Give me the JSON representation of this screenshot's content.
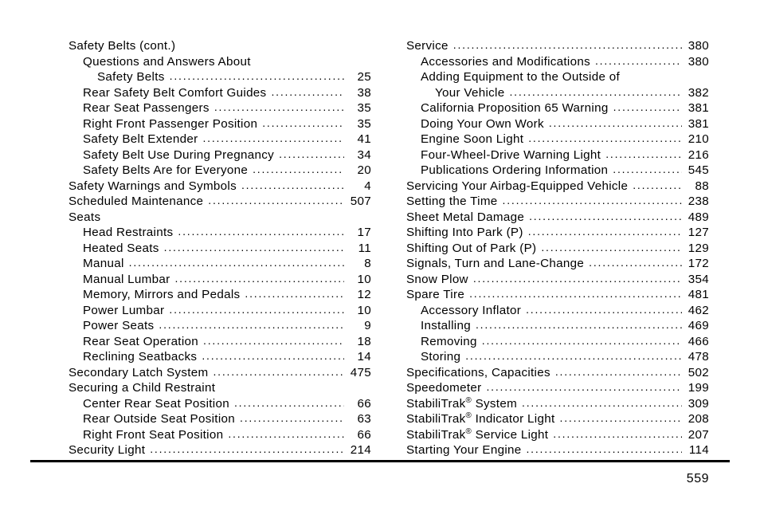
{
  "page_number": "559",
  "left_column": [
    {
      "label": "Safety Belts (cont.)",
      "page": "",
      "indent": 0,
      "nolink": true
    },
    {
      "label": "Questions and Answers About",
      "page": "",
      "indent": 1,
      "nolink": true
    },
    {
      "label": "Safety Belts",
      "page": "25",
      "indent": 2
    },
    {
      "label": "Rear Safety Belt Comfort Guides",
      "page": "38",
      "indent": 1
    },
    {
      "label": "Rear Seat Passengers",
      "page": "35",
      "indent": 1
    },
    {
      "label": "Right Front Passenger Position",
      "page": "35",
      "indent": 1
    },
    {
      "label": "Safety Belt Extender",
      "page": "41",
      "indent": 1
    },
    {
      "label": "Safety Belt Use During Pregnancy",
      "page": "34",
      "indent": 1
    },
    {
      "label": "Safety Belts Are for Everyone",
      "page": "20",
      "indent": 1
    },
    {
      "label": "Safety Warnings and Symbols",
      "page": "4",
      "indent": 0
    },
    {
      "label": "Scheduled Maintenance",
      "page": "507",
      "indent": 0
    },
    {
      "label": "Seats",
      "page": "",
      "indent": 0,
      "nolink": true
    },
    {
      "label": "Head Restraints",
      "page": "17",
      "indent": 1
    },
    {
      "label": "Heated Seats",
      "page": "11",
      "indent": 1
    },
    {
      "label": "Manual",
      "page": "8",
      "indent": 1
    },
    {
      "label": "Manual Lumbar",
      "page": "10",
      "indent": 1
    },
    {
      "label": "Memory, Mirrors and Pedals",
      "page": "12",
      "indent": 1
    },
    {
      "label": "Power Lumbar",
      "page": "10",
      "indent": 1
    },
    {
      "label": "Power Seats",
      "page": "9",
      "indent": 1
    },
    {
      "label": "Rear Seat Operation",
      "page": "18",
      "indent": 1
    },
    {
      "label": "Reclining Seatbacks",
      "page": "14",
      "indent": 1
    },
    {
      "label": "Secondary Latch System",
      "page": "475",
      "indent": 0
    },
    {
      "label": "Securing a Child Restraint",
      "page": "",
      "indent": 0,
      "nolink": true
    },
    {
      "label": "Center Rear Seat Position",
      "page": "66",
      "indent": 1
    },
    {
      "label": "Rear Outside Seat Position",
      "page": "63",
      "indent": 1
    },
    {
      "label": "Right Front Seat Position",
      "page": "66",
      "indent": 1
    },
    {
      "label": "Security Light",
      "page": "214",
      "indent": 0
    }
  ],
  "right_column": [
    {
      "label": "Service",
      "page": "380",
      "indent": 0
    },
    {
      "label": "Accessories and Modifications",
      "page": "380",
      "indent": 1
    },
    {
      "label": "Adding Equipment to the Outside of",
      "page": "",
      "indent": 1,
      "nolink": true
    },
    {
      "label": "Your Vehicle",
      "page": "382",
      "indent": 2
    },
    {
      "label": "California Proposition 65 Warning",
      "page": "381",
      "indent": 1
    },
    {
      "label": "Doing Your Own Work",
      "page": "381",
      "indent": 1
    },
    {
      "label": "Engine Soon Light",
      "page": "210",
      "indent": 1
    },
    {
      "label": "Four-Wheel-Drive Warning Light",
      "page": "216",
      "indent": 1
    },
    {
      "label": "Publications Ordering Information",
      "page": "545",
      "indent": 1
    },
    {
      "label": "Servicing Your Airbag-Equipped Vehicle",
      "page": "88",
      "indent": 0
    },
    {
      "label": "Setting the Time",
      "page": "238",
      "indent": 0
    },
    {
      "label": "Sheet Metal Damage",
      "page": "489",
      "indent": 0
    },
    {
      "label": "Shifting Into Park (P)",
      "page": "127",
      "indent": 0
    },
    {
      "label": "Shifting Out of Park (P)",
      "page": "129",
      "indent": 0
    },
    {
      "label": "Signals, Turn and Lane-Change",
      "page": "172",
      "indent": 0
    },
    {
      "label": "Snow Plow",
      "page": "354",
      "indent": 0
    },
    {
      "label": "Spare Tire",
      "page": "481",
      "indent": 0
    },
    {
      "label": "Accessory Inflator",
      "page": "462",
      "indent": 1
    },
    {
      "label": "Installing",
      "page": "469",
      "indent": 1
    },
    {
      "label": "Removing",
      "page": "466",
      "indent": 1
    },
    {
      "label": "Storing",
      "page": "478",
      "indent": 1
    },
    {
      "label": "Specifications, Capacities",
      "page": "502",
      "indent": 0
    },
    {
      "label": "Speedometer",
      "page": "199",
      "indent": 0
    },
    {
      "label_html": "StabiliTrak<sup>®</sup> System",
      "page": "309",
      "indent": 0
    },
    {
      "label_html": "StabiliTrak<sup>®</sup> Indicator Light",
      "page": "208",
      "indent": 0
    },
    {
      "label_html": "StabiliTrak<sup>®</sup> Service Light",
      "page": "207",
      "indent": 0
    },
    {
      "label": "Starting Your Engine",
      "page": "114",
      "indent": 0
    }
  ]
}
